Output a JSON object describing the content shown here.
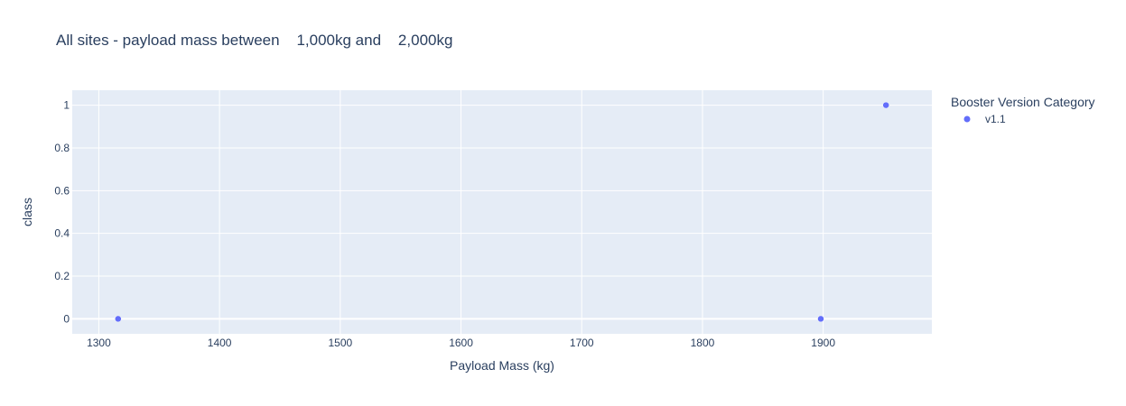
{
  "chart_data": {
    "type": "scatter",
    "title": "All sites - payload mass between    1,000kg and    2,000kg",
    "xlabel": "Payload Mass (kg)",
    "ylabel": "class",
    "xlim": [
      1278,
      1990
    ],
    "ylim": [
      -0.07,
      1.07
    ],
    "xticks": [
      1300,
      1400,
      1500,
      1600,
      1700,
      1800,
      1900
    ],
    "yticks": [
      0,
      0.2,
      0.4,
      0.6,
      0.8,
      1
    ],
    "ytick_labels": [
      "0",
      "0.2",
      "0.4",
      "0.6",
      "0.8",
      "1"
    ],
    "grid": true,
    "legend_placement": "right",
    "legend_title": "Booster Version Category",
    "series": [
      {
        "name": "v1.1",
        "color": "#636efa",
        "x": [
          1316,
          1898,
          1952
        ],
        "y": [
          0,
          0,
          1
        ]
      }
    ]
  },
  "colors": {
    "plot_bg": "#e5ecf6",
    "grid": "#ffffff",
    "text": "#2a3f5f"
  }
}
